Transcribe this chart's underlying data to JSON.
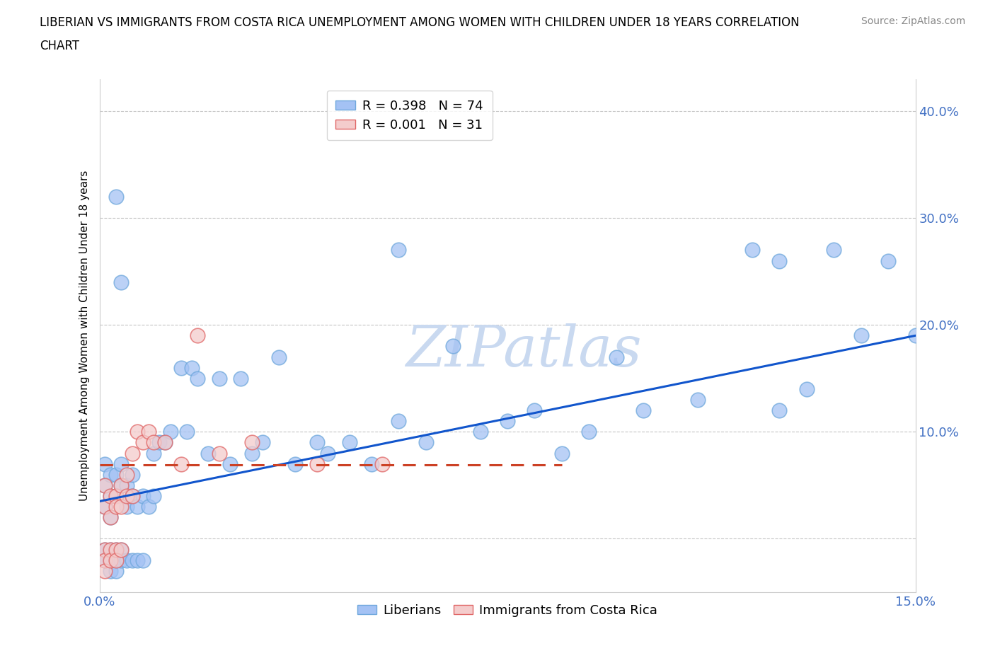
{
  "title_line1": "LIBERIAN VS IMMIGRANTS FROM COSTA RICA UNEMPLOYMENT AMONG WOMEN WITH CHILDREN UNDER 18 YEARS CORRELATION",
  "title_line2": "CHART",
  "source_text": "Source: ZipAtlas.com",
  "ylabel": "Unemployment Among Women with Children Under 18 years",
  "xlim": [
    0.0,
    0.15
  ],
  "ylim": [
    -0.05,
    0.43
  ],
  "xticks": [
    0.0,
    0.05,
    0.1,
    0.15
  ],
  "yticks": [
    0.0,
    0.1,
    0.2,
    0.3,
    0.4
  ],
  "ytick_labels": [
    "",
    "10.0%",
    "20.0%",
    "30.0%",
    "40.0%"
  ],
  "xtick_labels": [
    "0.0%",
    "",
    "",
    "15.0%"
  ],
  "liberian_R": 0.398,
  "liberian_N": 74,
  "costa_rica_R": 0.001,
  "costa_rica_N": 31,
  "liberian_color": "#a4c2f4",
  "liberian_edge": "#6fa8dc",
  "costa_rica_color": "#f4cccc",
  "costa_rica_edge": "#e06666",
  "trend_liberian_color": "#1155cc",
  "trend_costa_rica_color": "#cc4125",
  "watermark_color": "#c9d9f0",
  "tick_label_color": "#4472c4",
  "grid_color": "#b7b7b7",
  "liberian_x": [
    0.001,
    0.001,
    0.001,
    0.001,
    0.001,
    0.002,
    0.002,
    0.002,
    0.002,
    0.002,
    0.002,
    0.003,
    0.003,
    0.003,
    0.003,
    0.003,
    0.004,
    0.004,
    0.004,
    0.004,
    0.005,
    0.005,
    0.005,
    0.006,
    0.006,
    0.006,
    0.007,
    0.007,
    0.008,
    0.008,
    0.009,
    0.01,
    0.01,
    0.011,
    0.012,
    0.013,
    0.015,
    0.016,
    0.017,
    0.018,
    0.02,
    0.022,
    0.024,
    0.026,
    0.028,
    0.03,
    0.033,
    0.036,
    0.04,
    0.042,
    0.046,
    0.05,
    0.055,
    0.06,
    0.065,
    0.07,
    0.075,
    0.08,
    0.085,
    0.09,
    0.095,
    0.1,
    0.11,
    0.12,
    0.125,
    0.13,
    0.135,
    0.14,
    0.145,
    0.15,
    0.003,
    0.004,
    0.055,
    0.125
  ],
  "liberian_y": [
    0.05,
    0.03,
    -0.01,
    -0.02,
    0.07,
    0.04,
    0.06,
    -0.01,
    -0.02,
    0.02,
    -0.03,
    0.04,
    0.06,
    -0.01,
    -0.02,
    -0.03,
    0.05,
    0.07,
    -0.01,
    -0.02,
    0.03,
    0.05,
    -0.02,
    0.04,
    0.06,
    -0.02,
    0.03,
    -0.02,
    0.04,
    -0.02,
    0.03,
    0.08,
    0.04,
    0.09,
    0.09,
    0.1,
    0.16,
    0.1,
    0.16,
    0.15,
    0.08,
    0.15,
    0.07,
    0.15,
    0.08,
    0.09,
    0.17,
    0.07,
    0.09,
    0.08,
    0.09,
    0.07,
    0.11,
    0.09,
    0.18,
    0.1,
    0.11,
    0.12,
    0.08,
    0.1,
    0.17,
    0.12,
    0.13,
    0.27,
    0.12,
    0.14,
    0.27,
    0.19,
    0.26,
    0.19,
    0.32,
    0.24,
    0.27,
    0.26
  ],
  "costa_rica_x": [
    0.001,
    0.001,
    0.001,
    0.001,
    0.001,
    0.002,
    0.002,
    0.002,
    0.002,
    0.003,
    0.003,
    0.003,
    0.003,
    0.004,
    0.004,
    0.004,
    0.005,
    0.005,
    0.006,
    0.006,
    0.007,
    0.008,
    0.009,
    0.01,
    0.012,
    0.015,
    0.018,
    0.022,
    0.028,
    0.04,
    0.052
  ],
  "costa_rica_y": [
    0.03,
    0.05,
    -0.01,
    -0.02,
    -0.03,
    0.04,
    -0.01,
    -0.02,
    0.02,
    0.04,
    -0.01,
    0.03,
    -0.02,
    0.05,
    -0.01,
    0.03,
    0.06,
    0.04,
    0.08,
    0.04,
    0.1,
    0.09,
    0.1,
    0.09,
    0.09,
    0.07,
    0.19,
    0.08,
    0.09,
    0.07,
    0.07
  ],
  "trend_lib_x0": 0.0,
  "trend_lib_y0": 0.035,
  "trend_lib_x1": 0.15,
  "trend_lib_y1": 0.19,
  "trend_cr_x0": 0.0,
  "trend_cr_y0": 0.069,
  "trend_cr_x1": 0.085,
  "trend_cr_y1": 0.069
}
